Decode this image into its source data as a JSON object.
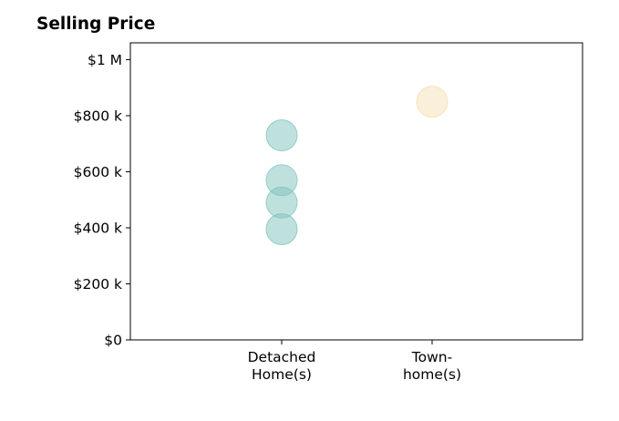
{
  "chart_data": {
    "type": "scatter",
    "title": "Selling Price",
    "xlabel": "",
    "ylabel": "",
    "categories": [
      [
        "Detached",
        "Home(s)"
      ],
      [
        "Town-",
        "home(s)"
      ]
    ],
    "y_ticks": [
      {
        "value": 0,
        "label": "$0"
      },
      {
        "value": 200000,
        "label": "$200 k"
      },
      {
        "value": 400000,
        "label": "$400 k"
      },
      {
        "value": 600000,
        "label": "$600 k"
      },
      {
        "value": 800000,
        "label": "$800 k"
      },
      {
        "value": 1000000,
        "label": "$1 M"
      }
    ],
    "ylim": [
      0,
      1060000
    ],
    "grid": false,
    "series": [
      {
        "category": 0,
        "color": "#7fc4bd",
        "values": [
          730000,
          570000,
          490000,
          395000
        ]
      },
      {
        "category": 1,
        "color": "#f5dfb3",
        "values": [
          850000
        ]
      }
    ]
  }
}
